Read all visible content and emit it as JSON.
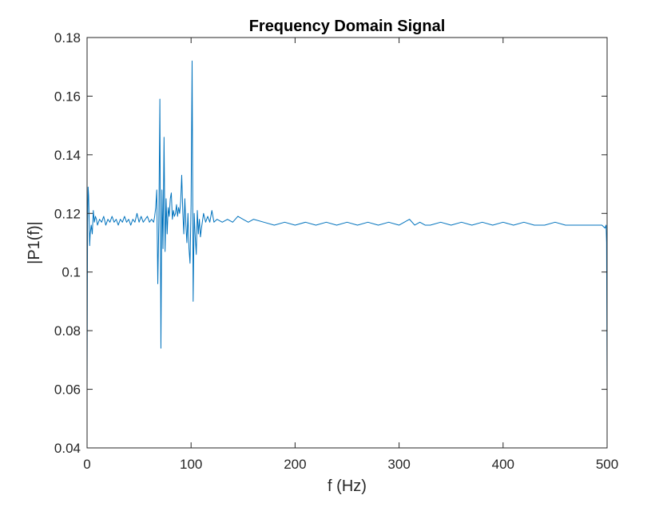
{
  "chart_data": {
    "type": "line",
    "title": "Frequency Domain Signal",
    "xlabel": "f (Hz)",
    "ylabel": "|P1(f)|",
    "xlim": [
      0,
      500
    ],
    "ylim": [
      0.04,
      0.18
    ],
    "x_ticks": [
      0,
      100,
      200,
      300,
      400,
      500
    ],
    "y_ticks": [
      0.04,
      0.06,
      0.08,
      0.1,
      0.12,
      0.14,
      0.16,
      0.18
    ],
    "x_tick_labels": [
      "0",
      "100",
      "200",
      "300",
      "400",
      "500"
    ],
    "y_tick_labels": [
      "0.04",
      "0.06",
      "0.08",
      "0.1",
      "0.12",
      "0.14",
      "0.16",
      "0.18"
    ],
    "grid": false,
    "legend": "none",
    "series": [
      {
        "color": "#0072BD",
        "x": [
          0,
          0.5,
          1,
          1.5,
          2,
          2.5,
          3,
          4,
          5,
          6,
          7,
          8,
          9,
          10,
          12,
          14,
          16,
          18,
          20,
          22,
          24,
          26,
          28,
          30,
          32,
          34,
          36,
          38,
          40,
          42,
          44,
          46,
          48,
          50,
          52,
          54,
          56,
          58,
          60,
          62,
          64,
          65,
          66,
          67,
          68,
          69,
          70,
          71,
          72,
          73,
          74,
          75,
          76,
          77,
          78,
          79,
          80,
          81,
          82,
          83,
          84,
          85,
          86,
          87,
          88,
          89,
          90,
          91,
          92,
          93,
          94,
          95,
          96,
          97,
          98,
          99,
          100,
          101,
          102,
          103,
          104,
          105,
          106,
          107,
          108,
          109,
          110,
          112,
          114,
          116,
          118,
          120,
          122,
          125,
          130,
          135,
          140,
          145,
          150,
          155,
          160,
          170,
          180,
          190,
          200,
          210,
          220,
          230,
          240,
          250,
          260,
          270,
          280,
          290,
          300,
          305,
          310,
          315,
          320,
          325,
          330,
          340,
          350,
          360,
          370,
          380,
          390,
          400,
          410,
          420,
          430,
          440,
          450,
          460,
          470,
          480,
          490,
          495,
          498,
          499,
          499.5,
          500
        ],
        "y": [
          0.06,
          0.117,
          0.129,
          0.126,
          0.118,
          0.109,
          0.113,
          0.116,
          0.113,
          0.121,
          0.117,
          0.119,
          0.118,
          0.116,
          0.118,
          0.117,
          0.119,
          0.116,
          0.118,
          0.117,
          0.119,
          0.117,
          0.118,
          0.116,
          0.118,
          0.117,
          0.119,
          0.117,
          0.118,
          0.116,
          0.118,
          0.117,
          0.12,
          0.117,
          0.119,
          0.117,
          0.118,
          0.119,
          0.117,
          0.118,
          0.117,
          0.119,
          0.122,
          0.128,
          0.096,
          0.117,
          0.159,
          0.074,
          0.128,
          0.108,
          0.146,
          0.107,
          0.125,
          0.113,
          0.122,
          0.119,
          0.125,
          0.127,
          0.118,
          0.121,
          0.119,
          0.12,
          0.123,
          0.119,
          0.122,
          0.12,
          0.124,
          0.133,
          0.121,
          0.113,
          0.125,
          0.116,
          0.11,
          0.12,
          0.108,
          0.103,
          0.123,
          0.172,
          0.09,
          0.12,
          0.112,
          0.106,
          0.121,
          0.113,
          0.118,
          0.112,
          0.115,
          0.12,
          0.117,
          0.119,
          0.117,
          0.121,
          0.117,
          0.118,
          0.117,
          0.118,
          0.117,
          0.119,
          0.118,
          0.117,
          0.118,
          0.117,
          0.116,
          0.117,
          0.116,
          0.117,
          0.116,
          0.117,
          0.116,
          0.117,
          0.116,
          0.117,
          0.116,
          0.117,
          0.116,
          0.117,
          0.118,
          0.116,
          0.117,
          0.116,
          0.116,
          0.117,
          0.116,
          0.117,
          0.116,
          0.117,
          0.116,
          0.117,
          0.116,
          0.117,
          0.116,
          0.116,
          0.117,
          0.116,
          0.116,
          0.116,
          0.116,
          0.116,
          0.115,
          0.116,
          0.11,
          0.06
        ]
      }
    ]
  }
}
